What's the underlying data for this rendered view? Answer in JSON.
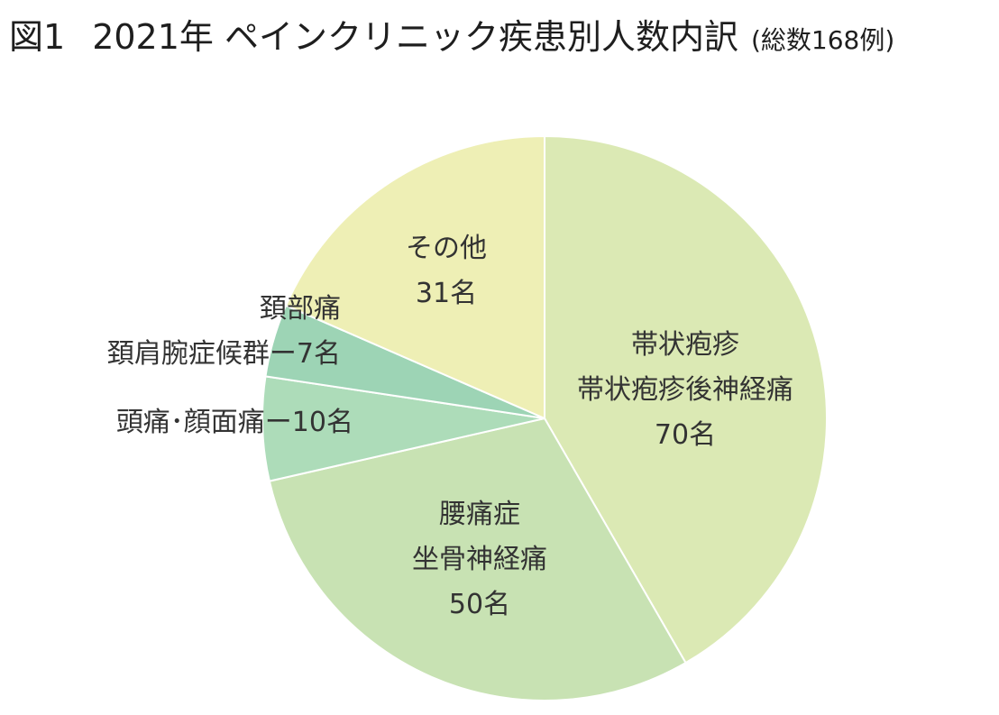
{
  "title": {
    "figure": "図1",
    "main": "2021年 ペインクリニック疾患別人数内訳",
    "note": "(総数168例)"
  },
  "chart_data": {
    "type": "pie",
    "total": 168,
    "slices": [
      {
        "lines": [
          "帯状疱疹",
          "帯状疱疹後神経痛",
          "70名"
        ],
        "value": 70,
        "color": "#dbe9b4"
      },
      {
        "lines": [
          "腰痛症",
          "坐骨神経痛",
          "50名"
        ],
        "value": 50,
        "color": "#c8e2b3"
      },
      {
        "lines": [
          "頭痛･顔面痛ー10名"
        ],
        "value": 10,
        "color": "#addcb9"
      },
      {
        "lines": [
          "頚部痛",
          "頚肩腕症候群ー7名"
        ],
        "value": 7,
        "color": "#9dd4b5"
      },
      {
        "lines": [
          "その他",
          "31名"
        ],
        "value": 31,
        "color": "#eeefb5"
      }
    ],
    "start_angle": "12 o'clock",
    "direction": "clockwise",
    "legend": "none"
  }
}
